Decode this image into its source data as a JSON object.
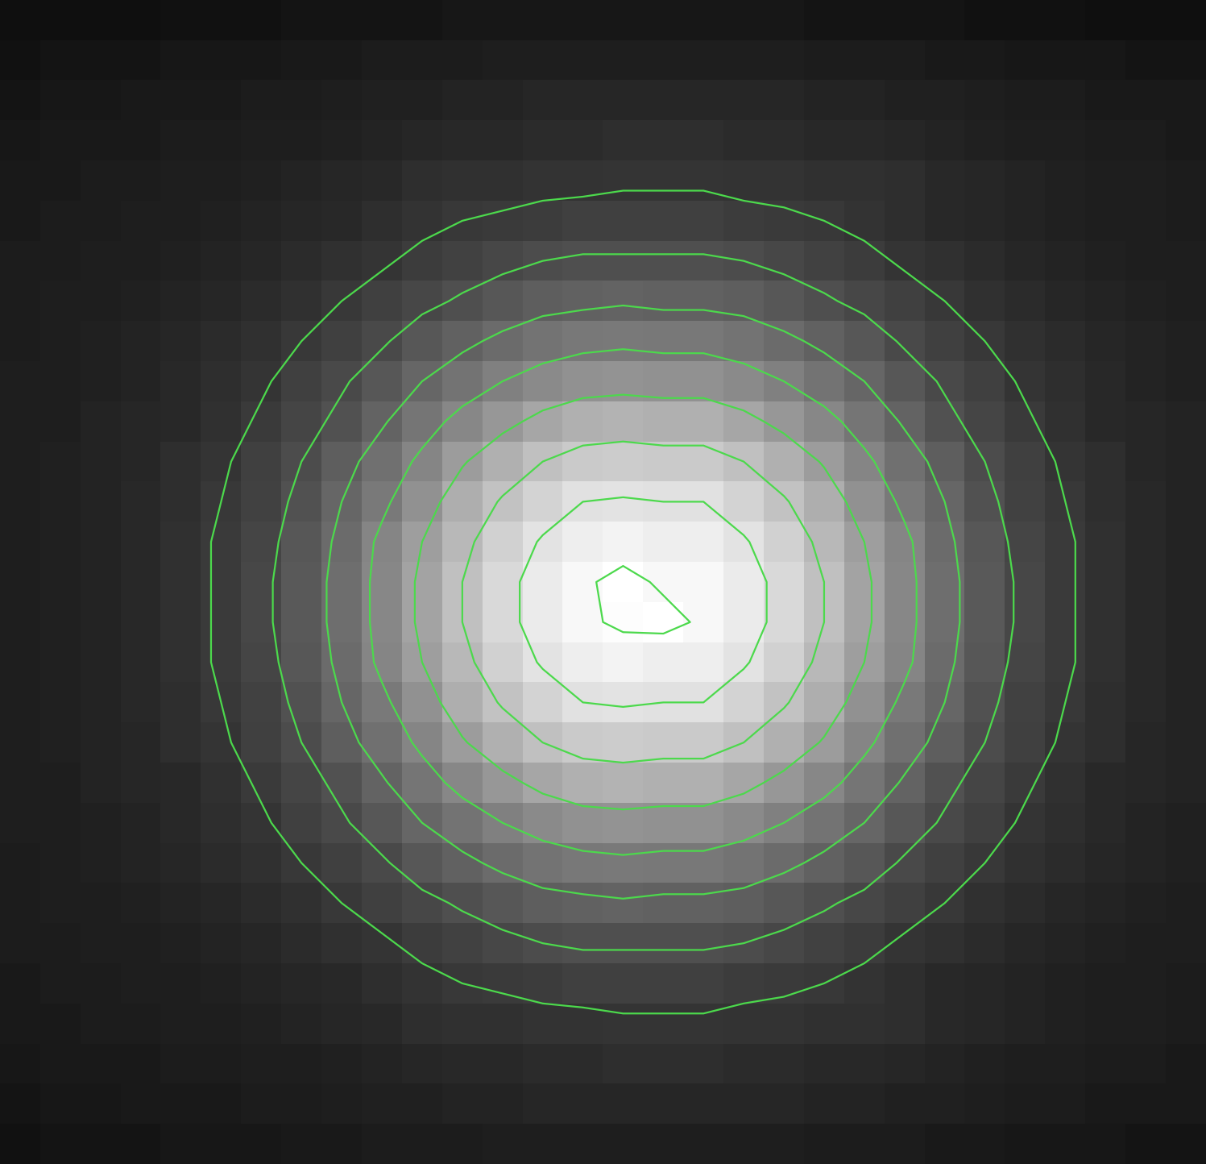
{
  "chart_data": {
    "type": "heatmap",
    "tick_labels": false,
    "color": "#4cd94c",
    "zlim": [
      0,
      100
    ],
    "contour_levels": [
      22,
      30,
      40,
      50,
      62,
      75,
      88,
      98
    ],
    "cells": [
      [
        6,
        6,
        6,
        6,
        7,
        7,
        7,
        8,
        8,
        8,
        8,
        9,
        9,
        9,
        9,
        9,
        9,
        9,
        9,
        9,
        8,
        8,
        8,
        8,
        7,
        7,
        7,
        6,
        6,
        6
      ],
      [
        7,
        8,
        8,
        8,
        9,
        9,
        9,
        10,
        10,
        11,
        11,
        11,
        12,
        12,
        12,
        12,
        12,
        12,
        12,
        12,
        11,
        11,
        11,
        10,
        10,
        9,
        9,
        9,
        8,
        8
      ],
      [
        8,
        9,
        9,
        10,
        10,
        10,
        11,
        11,
        12,
        13,
        13,
        14,
        14,
        15,
        15,
        15,
        15,
        15,
        15,
        15,
        14,
        14,
        13,
        13,
        12,
        11,
        11,
        10,
        10,
        10
      ],
      [
        9,
        10,
        10,
        10,
        11,
        11,
        12,
        12,
        13,
        14,
        15,
        16,
        16,
        17,
        17,
        18,
        18,
        18,
        17,
        17,
        16,
        16,
        15,
        14,
        13,
        12,
        12,
        11,
        11,
        10
      ],
      [
        10,
        10,
        11,
        11,
        12,
        12,
        13,
        14,
        15,
        16,
        18,
        19,
        19,
        20,
        20,
        21,
        21,
        21,
        20,
        20,
        19,
        19,
        18,
        16,
        15,
        14,
        13,
        12,
        12,
        11
      ],
      [
        10,
        11,
        11,
        12,
        12,
        13,
        14,
        15,
        16,
        18,
        20,
        22,
        23,
        24,
        25,
        25,
        25,
        25,
        24,
        23,
        22,
        20,
        18,
        16,
        15,
        14,
        13,
        12,
        12,
        11
      ],
      [
        11,
        11,
        12,
        12,
        13,
        14,
        15,
        17,
        19,
        21,
        24,
        26,
        28,
        30,
        31,
        31,
        31,
        31,
        30,
        28,
        26,
        24,
        21,
        19,
        17,
        15,
        14,
        13,
        12,
        12
      ],
      [
        11,
        12,
        12,
        13,
        14,
        15,
        17,
        19,
        22,
        25,
        28,
        31,
        34,
        37,
        38,
        39,
        38,
        38,
        37,
        34,
        31,
        28,
        25,
        22,
        19,
        17,
        15,
        14,
        13,
        12
      ],
      [
        11,
        12,
        13,
        14,
        15,
        17,
        19,
        22,
        25,
        29,
        34,
        38,
        42,
        45,
        47,
        48,
        47,
        47,
        45,
        42,
        38,
        34,
        29,
        25,
        22,
        19,
        17,
        15,
        14,
        13
      ],
      [
        12,
        12,
        13,
        14,
        16,
        18,
        21,
        25,
        29,
        34,
        40,
        45,
        50,
        54,
        57,
        58,
        57,
        57,
        54,
        50,
        45,
        40,
        34,
        29,
        25,
        21,
        18,
        16,
        14,
        13
      ],
      [
        12,
        12,
        14,
        15,
        16,
        19,
        23,
        27,
        32,
        39,
        46,
        53,
        59,
        65,
        69,
        70,
        69,
        69,
        65,
        59,
        53,
        46,
        39,
        32,
        27,
        23,
        19,
        16,
        15,
        14
      ],
      [
        12,
        13,
        14,
        15,
        18,
        21,
        25,
        30,
        37,
        44,
        52,
        61,
        69,
        75,
        79,
        80,
        79,
        79,
        75,
        69,
        61,
        52,
        44,
        37,
        30,
        25,
        21,
        18,
        15,
        14
      ],
      [
        12,
        13,
        14,
        16,
        18,
        22,
        26,
        32,
        40,
        48,
        57,
        68,
        76,
        83,
        88,
        89,
        88,
        88,
        83,
        76,
        68,
        57,
        48,
        40,
        32,
        26,
        22,
        18,
        16,
        14
      ],
      [
        12,
        13,
        14,
        16,
        19,
        23,
        27,
        34,
        42,
        52,
        62,
        72,
        82,
        89,
        93,
        95,
        93,
        93,
        89,
        82,
        72,
        62,
        52,
        42,
        34,
        27,
        23,
        19,
        16,
        14
      ],
      [
        12,
        13,
        14,
        16,
        19,
        23,
        28,
        35,
        43,
        53,
        64,
        75,
        85,
        92,
        97,
        100,
        97,
        97,
        92,
        85,
        75,
        64,
        53,
        43,
        35,
        28,
        23,
        19,
        16,
        14
      ],
      [
        12,
        13,
        14,
        16,
        19,
        23,
        28,
        35,
        43,
        53,
        64,
        75,
        85,
        92,
        97,
        99,
        100,
        97,
        92,
        85,
        75,
        64,
        53,
        43,
        35,
        28,
        23,
        19,
        16,
        14
      ],
      [
        12,
        13,
        14,
        16,
        19,
        23,
        27,
        34,
        42,
        52,
        62,
        72,
        82,
        89,
        93,
        95,
        93,
        93,
        89,
        82,
        72,
        62,
        52,
        42,
        34,
        27,
        23,
        19,
        16,
        14
      ],
      [
        12,
        13,
        14,
        16,
        18,
        22,
        26,
        32,
        40,
        48,
        57,
        68,
        76,
        83,
        88,
        89,
        88,
        88,
        83,
        76,
        68,
        57,
        48,
        40,
        32,
        26,
        22,
        18,
        16,
        14
      ],
      [
        12,
        13,
        14,
        15,
        18,
        21,
        25,
        30,
        37,
        44,
        52,
        61,
        69,
        75,
        79,
        80,
        79,
        79,
        75,
        69,
        61,
        52,
        44,
        37,
        30,
        25,
        21,
        18,
        15,
        14
      ],
      [
        12,
        12,
        14,
        15,
        16,
        19,
        23,
        27,
        32,
        39,
        46,
        53,
        59,
        65,
        69,
        70,
        69,
        69,
        65,
        59,
        53,
        46,
        39,
        32,
        27,
        23,
        19,
        16,
        15,
        14
      ],
      [
        12,
        12,
        13,
        14,
        16,
        18,
        21,
        25,
        29,
        34,
        40,
        45,
        50,
        54,
        57,
        58,
        57,
        57,
        54,
        50,
        45,
        40,
        34,
        29,
        25,
        21,
        18,
        16,
        14,
        13
      ],
      [
        11,
        12,
        13,
        14,
        15,
        17,
        19,
        22,
        25,
        29,
        34,
        38,
        42,
        45,
        47,
        48,
        47,
        47,
        45,
        42,
        38,
        34,
        29,
        25,
        22,
        19,
        17,
        15,
        14,
        13
      ],
      [
        11,
        12,
        12,
        13,
        14,
        15,
        17,
        19,
        22,
        25,
        28,
        31,
        34,
        37,
        38,
        39,
        38,
        38,
        37,
        34,
        31,
        28,
        25,
        22,
        19,
        17,
        15,
        14,
        13,
        12
      ],
      [
        11,
        11,
        12,
        12,
        13,
        14,
        15,
        17,
        19,
        21,
        24,
        26,
        28,
        30,
        31,
        31,
        31,
        31,
        30,
        28,
        26,
        24,
        21,
        19,
        17,
        15,
        14,
        13,
        12,
        12
      ],
      [
        10,
        11,
        11,
        12,
        12,
        13,
        14,
        15,
        16,
        18,
        20,
        22,
        23,
        24,
        25,
        25,
        25,
        25,
        24,
        23,
        22,
        20,
        18,
        16,
        15,
        14,
        13,
        12,
        12,
        11
      ],
      [
        10,
        10,
        11,
        11,
        12,
        12,
        13,
        14,
        15,
        16,
        18,
        19,
        19,
        20,
        20,
        21,
        21,
        21,
        20,
        20,
        19,
        19,
        18,
        16,
        15,
        14,
        13,
        12,
        12,
        11
      ],
      [
        9,
        10,
        10,
        10,
        11,
        11,
        12,
        12,
        13,
        14,
        15,
        16,
        16,
        17,
        17,
        18,
        18,
        18,
        17,
        17,
        16,
        16,
        15,
        14,
        13,
        12,
        12,
        11,
        11,
        10
      ],
      [
        8,
        9,
        9,
        10,
        10,
        10,
        11,
        11,
        12,
        13,
        13,
        14,
        14,
        15,
        15,
        15,
        15,
        15,
        15,
        15,
        14,
        14,
        13,
        13,
        12,
        11,
        11,
        10,
        10,
        10
      ],
      [
        7,
        8,
        8,
        8,
        9,
        9,
        9,
        10,
        10,
        11,
        11,
        11,
        12,
        12,
        12,
        12,
        12,
        12,
        12,
        12,
        11,
        11,
        11,
        10,
        10,
        9,
        9,
        9,
        8,
        8
      ]
    ]
  }
}
